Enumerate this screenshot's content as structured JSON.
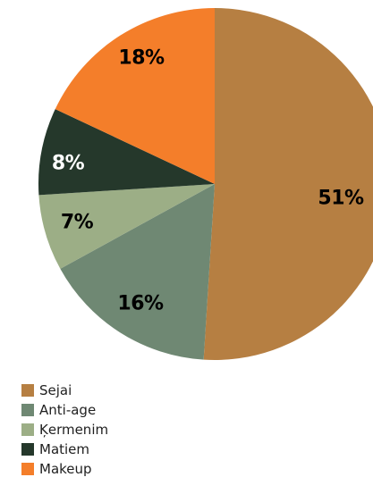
{
  "chart_data": {
    "type": "pie",
    "title": "",
    "slices": [
      {
        "name": "Sejai",
        "value": 51,
        "label": "51%",
        "color": "#B67F42",
        "label_color": "#000000"
      },
      {
        "name": "Anti-age",
        "value": 16,
        "label": "16%",
        "color": "#6F8873",
        "label_color": "#000000"
      },
      {
        "name": "Ķermenim",
        "value": 7,
        "label": "7%",
        "color": "#9CAE86",
        "label_color": "#000000"
      },
      {
        "name": "Matiem",
        "value": 8,
        "label": "8%",
        "color": "#25382B",
        "label_color": "#FFFFFF"
      },
      {
        "name": "Makeup",
        "value": 18,
        "label": "18%",
        "color": "#F47E2A",
        "label_color": "#000000"
      }
    ],
    "start_angle": "top",
    "direction": "clockwise",
    "legend_position": "bottom-left"
  }
}
